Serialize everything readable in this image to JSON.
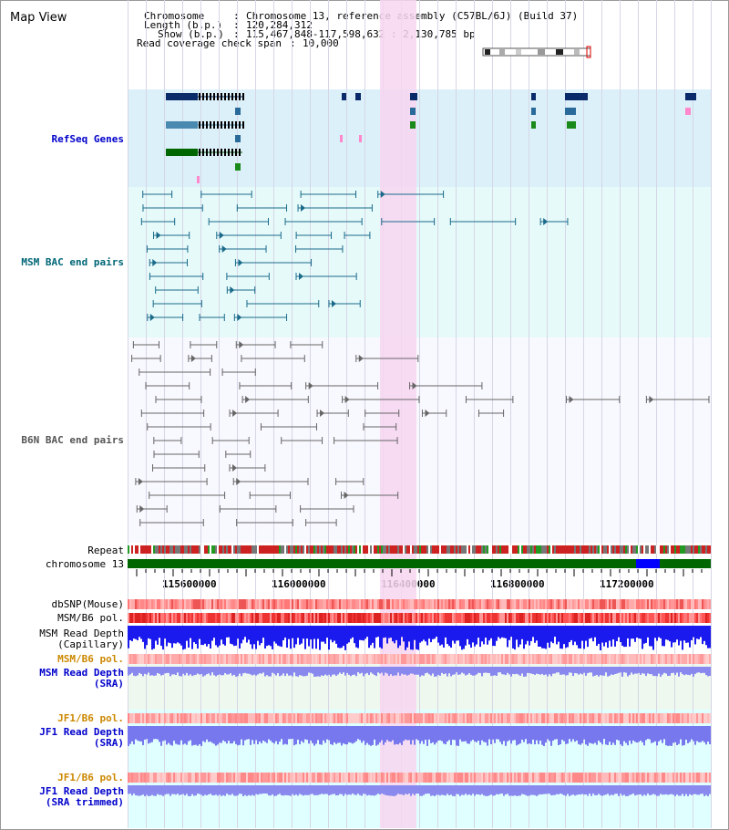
{
  "window_title": "Map View",
  "header": {
    "chromosome_label": "Chromosome",
    "chromosome_value": "Chromosome 13, reference assembly (C57BL/6J) (Build 37)",
    "length_label": "Length (b.p.)",
    "length_value": "120,284,312",
    "show_label": "Show (b.p.)",
    "show_value": "115,467,848-117,598,632 : 2,130,785 bp",
    "coverage_label": "Read coverage check span",
    "coverage_value": "10,000",
    "separator": ":"
  },
  "tracks": {
    "refseq": "RefSeq Genes",
    "msm_bac": "MSM BAC end pairs",
    "b6n_bac": "B6N BAC end pairs",
    "repeat": "Repeat",
    "chromosome": "chromosome 13",
    "dbsnp": "dbSNP(Mouse)",
    "msm_b6_pol": "MSM/B6 pol.",
    "msm_read_depth_cap": "MSM Read Depth",
    "msm_read_depth_cap_sub": "(Capillary)",
    "msm_b6_pol_sra": "MSM/B6 pol.",
    "msm_read_depth_sra": "MSM Read Depth",
    "msm_read_depth_sra_sub": "(SRA)",
    "jf1_b6_pol": "JF1/B6 pol.",
    "jf1_read_depth": "JF1 Read Depth",
    "jf1_read_depth_sub": "(SRA)",
    "jf1_b6_pol_trim": "JF1/B6 pol.",
    "jf1_read_depth_trim": "JF1 Read Depth",
    "jf1_read_depth_trim_sub": "(SRA trimmed)"
  },
  "axis_ticks": [
    "115600000",
    "116000000",
    "116400000",
    "116800000",
    "117200000"
  ],
  "colors": {
    "refseq_bg": "#dcf0fa",
    "msm_bg": "#e6fafa",
    "b6n_bg": "#f8f8ff",
    "highlight": "#f7d6f0",
    "chrom_green": "#006600",
    "chrom_blue": "#0000ff",
    "label_blue": "#0000cc",
    "label_teal": "#006677",
    "label_orange": "#cc8800"
  },
  "highlight_region": [
    116390000,
    116430000
  ]
}
